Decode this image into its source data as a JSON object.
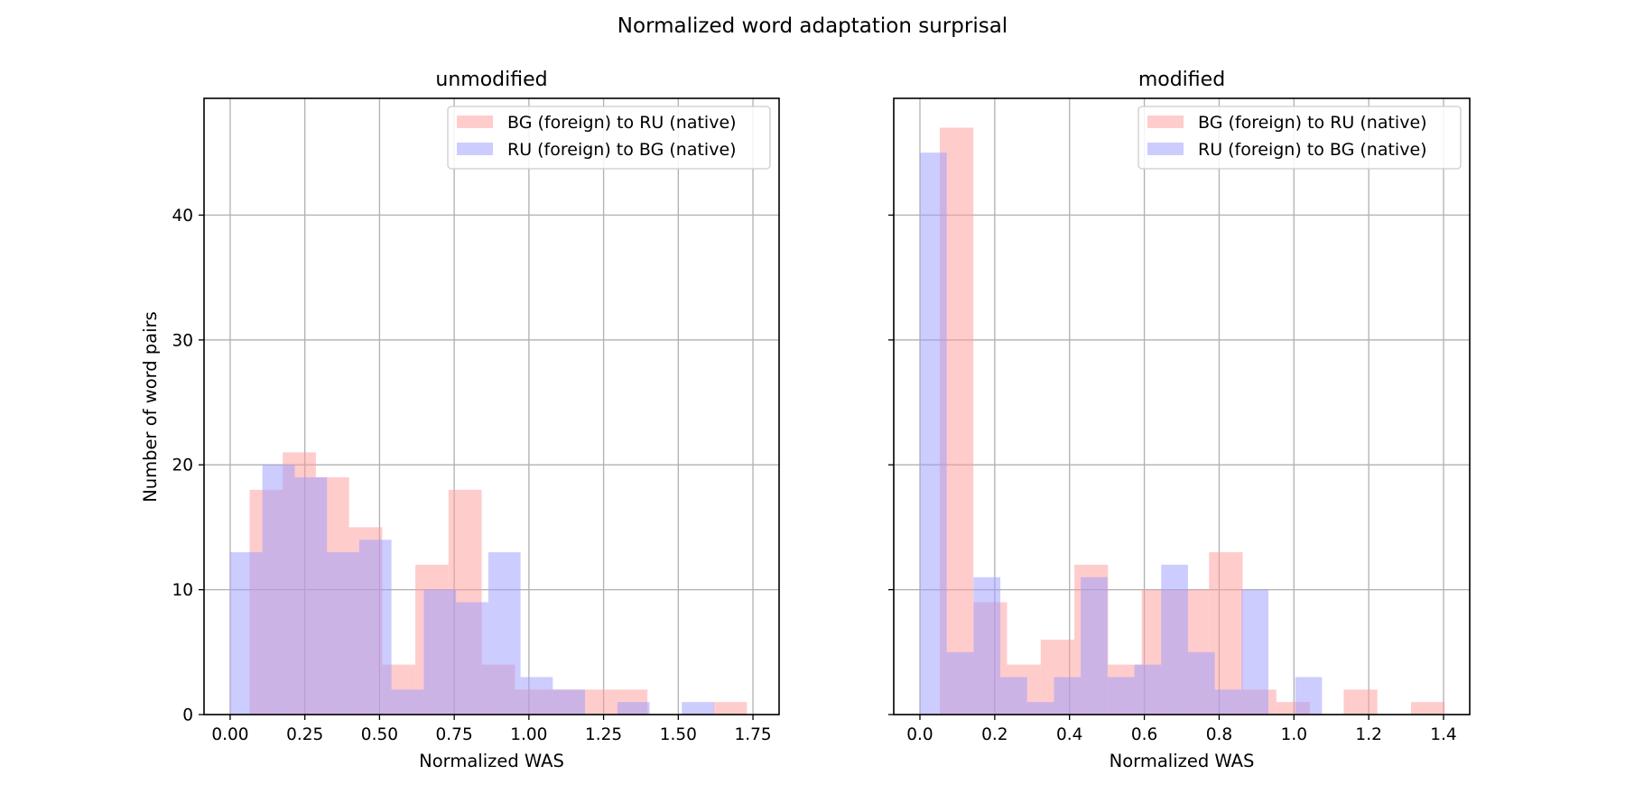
{
  "chart_data": {
    "title": "Normalized word adaptation surprisal",
    "type": "bar",
    "colors": {
      "bg_to_ru": "#ff9999",
      "ru_to_bg": "#9999ff"
    },
    "shared_ylabel": "Number of word pairs",
    "panels": [
      {
        "title": "unmodified",
        "xlabel": "Normalized WAS",
        "ylabel": "Number of word pairs",
        "xlim": [
          -0.0875,
          1.8375
        ],
        "ylim": [
          0,
          49.35
        ],
        "xticks": [
          0.0,
          0.25,
          0.5,
          0.75,
          1.0,
          1.25,
          1.5,
          1.75
        ],
        "xtick_labels": [
          "0.00",
          "0.25",
          "0.50",
          "0.75",
          "1.00",
          "1.25",
          "1.50",
          "1.75"
        ],
        "yticks": [
          0,
          10,
          20,
          30,
          40
        ],
        "ytick_labels": [
          "0",
          "10",
          "20",
          "30",
          "40"
        ],
        "legend_position": "upper right",
        "series": [
          {
            "name": "BG (foreign) to RU (native)",
            "color_key": "bg_to_ru",
            "bin_edges": [
              0.065,
              0.176,
              0.287,
              0.398,
              0.509,
              0.62,
              0.731,
              0.842,
              0.953,
              1.064,
              1.175,
              1.286,
              1.397,
              1.508,
              1.619,
              1.73
            ],
            "values": [
              18,
              21,
              19,
              15,
              4,
              12,
              18,
              4,
              2,
              2,
              2,
              2,
              0,
              0,
              1
            ]
          },
          {
            "name": "RU (foreign) to BG (native)",
            "color_key": "ru_to_bg",
            "bin_edges": [
              0.0,
              0.108,
              0.216,
              0.324,
              0.432,
              0.54,
              0.648,
              0.756,
              0.864,
              0.972,
              1.08,
              1.188,
              1.296,
              1.404,
              1.512,
              1.62
            ],
            "values": [
              13,
              20,
              19,
              13,
              14,
              2,
              10,
              9,
              13,
              3,
              2,
              0,
              1,
              0,
              1
            ]
          }
        ]
      },
      {
        "title": "modified",
        "xlabel": "Normalized WAS",
        "xlim": [
          -0.07,
          1.47
        ],
        "ylim": [
          0,
          49.35
        ],
        "xticks": [
          0.0,
          0.2,
          0.4,
          0.6,
          0.8,
          1.0,
          1.2,
          1.4
        ],
        "xtick_labels": [
          "0.0",
          "0.2",
          "0.4",
          "0.6",
          "0.8",
          "1.0",
          "1.2",
          "1.4"
        ],
        "yticks": [
          0,
          10,
          20,
          30,
          40
        ],
        "legend_position": "upper right",
        "series": [
          {
            "name": "BG (foreign) to RU (native)",
            "color_key": "bg_to_ru",
            "bin_edges": [
              0.053,
              0.143,
              0.233,
              0.323,
              0.413,
              0.503,
              0.593,
              0.683,
              0.773,
              0.863,
              0.953,
              1.043,
              1.133,
              1.223,
              1.313,
              1.403
            ],
            "values": [
              47,
              9,
              4,
              6,
              12,
              4,
              10,
              10,
              13,
              2,
              1,
              0,
              2,
              0,
              1
            ]
          },
          {
            "name": "RU (foreign) to BG (native)",
            "color_key": "ru_to_bg",
            "bin_edges": [
              0.0,
              0.0717,
              0.1433,
              0.215,
              0.2867,
              0.3583,
              0.43,
              0.5017,
              0.5733,
              0.645,
              0.7167,
              0.7883,
              0.86,
              0.9317,
              1.0033,
              1.075
            ],
            "values": [
              45,
              5,
              11,
              3,
              1,
              3,
              11,
              3,
              4,
              12,
              5,
              2,
              10,
              0,
              3
            ]
          }
        ]
      }
    ]
  }
}
